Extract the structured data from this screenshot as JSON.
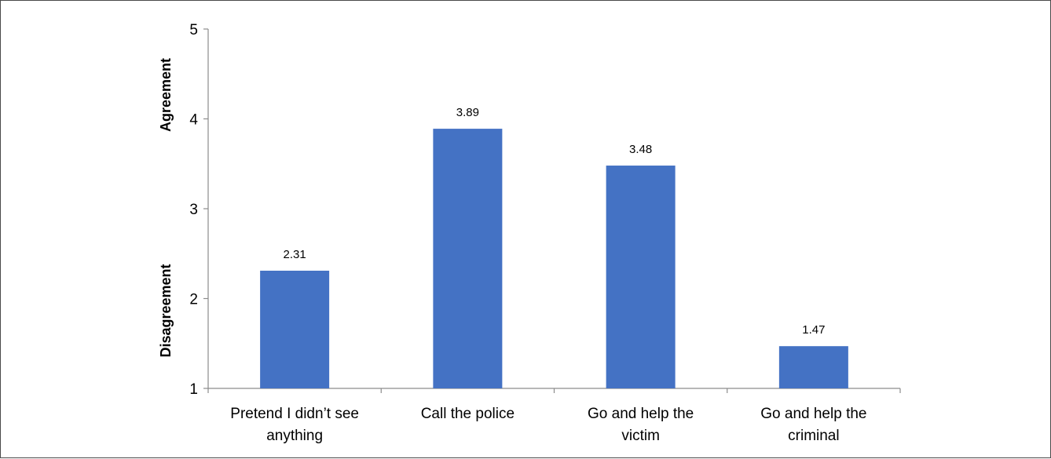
{
  "chart_data": {
    "type": "bar",
    "categories": [
      [
        "Pretend I didn’t see",
        "anything"
      ],
      [
        "Call the police"
      ],
      [
        "Go and help the",
        "victim"
      ],
      [
        "Go and help the",
        "criminal"
      ]
    ],
    "values": [
      2.31,
      3.89,
      3.48,
      1.47
    ],
    "data_labels": [
      "2.31",
      "3.89",
      "3.48",
      "1.47"
    ],
    "ylim": [
      1,
      5
    ],
    "yticks": [
      "1",
      "2",
      "3",
      "4",
      "5"
    ],
    "ylabels": {
      "lower": "Disagreement",
      "upper": "Agreement"
    },
    "bar_color": "#4472c4",
    "grid": false,
    "legend": "none"
  }
}
